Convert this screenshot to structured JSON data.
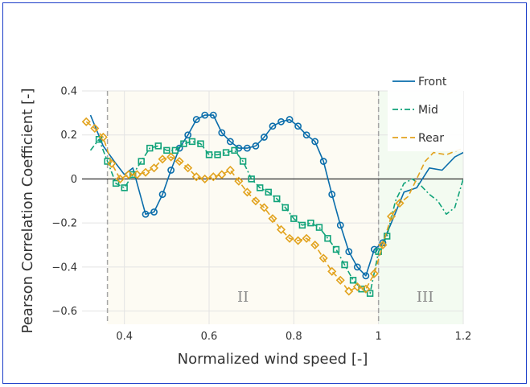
{
  "chart_data": {
    "type": "line",
    "xlabel": "Normalized wind speed [-]",
    "ylabel": "Pearson Correlation Coefficient [-]",
    "xlim": [
      0.3,
      1.2
    ],
    "ylim": [
      -0.66,
      0.4
    ],
    "x_ticks": [
      0.4,
      0.6,
      0.8,
      1.0,
      1.2
    ],
    "x_tick_labels": [
      "0.4",
      "0.6",
      "0.8",
      "1",
      "1.2"
    ],
    "y_ticks": [
      -0.6,
      -0.4,
      -0.2,
      0,
      0.2,
      0.4
    ],
    "y_tick_labels": [
      "−0.6",
      "−0.4",
      "−0.2",
      "0",
      "0.2",
      "0.4"
    ],
    "grid": true,
    "legend_position": "top-right",
    "regions": [
      {
        "label": "II",
        "x_start": 0.36,
        "x_end": 1.0,
        "color": "#fdfbf3"
      },
      {
        "label": "III",
        "x_start": 1.0,
        "x_end": 1.2,
        "color": "#f3fbf1"
      }
    ],
    "vertical_lines": [
      0.36,
      1.0
    ],
    "series": [
      {
        "name": "Front",
        "color": "#0a6dab",
        "dash": "solid",
        "marker": "circle",
        "x": [
          0.32,
          0.35,
          0.38,
          0.4,
          0.42,
          0.45,
          0.47,
          0.49,
          0.51,
          0.53,
          0.55,
          0.57,
          0.59,
          0.61,
          0.63,
          0.65,
          0.67,
          0.69,
          0.71,
          0.73,
          0.75,
          0.77,
          0.79,
          0.81,
          0.83,
          0.85,
          0.87,
          0.89,
          0.91,
          0.93,
          0.95,
          0.97,
          0.99,
          1.01,
          1.03,
          1.06,
          1.09,
          1.12,
          1.15,
          1.18,
          1.2
        ],
        "y": [
          0.29,
          0.15,
          0.07,
          0.02,
          0.05,
          -0.16,
          -0.15,
          -0.07,
          0.04,
          0.14,
          0.2,
          0.27,
          0.29,
          0.29,
          0.21,
          0.17,
          0.14,
          0.14,
          0.15,
          0.19,
          0.24,
          0.26,
          0.27,
          0.24,
          0.2,
          0.17,
          0.08,
          -0.07,
          -0.21,
          -0.33,
          -0.4,
          -0.44,
          -0.32,
          -0.29,
          -0.2,
          -0.06,
          -0.04,
          0.05,
          0.04,
          0.1,
          0.12
        ],
        "markers_x_range": [
          0.44,
          1.02
        ]
      },
      {
        "name": "Mid",
        "color": "#11a37a",
        "dash": "dashdot",
        "marker": "square",
        "x": [
          0.32,
          0.34,
          0.36,
          0.38,
          0.4,
          0.42,
          0.44,
          0.46,
          0.48,
          0.5,
          0.52,
          0.54,
          0.56,
          0.58,
          0.6,
          0.62,
          0.64,
          0.66,
          0.68,
          0.7,
          0.72,
          0.74,
          0.76,
          0.78,
          0.8,
          0.82,
          0.84,
          0.86,
          0.88,
          0.9,
          0.92,
          0.94,
          0.96,
          0.98,
          1.0,
          1.02,
          1.04,
          1.06,
          1.08,
          1.1,
          1.12,
          1.14,
          1.16,
          1.18,
          1.2
        ],
        "y": [
          0.13,
          0.18,
          0.08,
          -0.02,
          -0.04,
          0.02,
          0.08,
          0.14,
          0.15,
          0.13,
          0.13,
          0.16,
          0.17,
          0.16,
          0.11,
          0.11,
          0.12,
          0.13,
          0.08,
          0.0,
          -0.04,
          -0.06,
          -0.09,
          -0.13,
          -0.18,
          -0.21,
          -0.2,
          -0.22,
          -0.27,
          -0.32,
          -0.39,
          -0.46,
          -0.5,
          -0.52,
          -0.33,
          -0.26,
          -0.1,
          -0.02,
          0.0,
          -0.03,
          -0.07,
          -0.1,
          -0.16,
          -0.13,
          0.0
        ],
        "markers_x_range": [
          0.33,
          1.03
        ]
      },
      {
        "name": "Rear",
        "color": "#e2a31f",
        "dash": "dash",
        "marker": "diamond",
        "x": [
          0.31,
          0.33,
          0.35,
          0.37,
          0.39,
          0.41,
          0.43,
          0.45,
          0.47,
          0.49,
          0.51,
          0.53,
          0.55,
          0.57,
          0.59,
          0.61,
          0.63,
          0.65,
          0.67,
          0.69,
          0.71,
          0.73,
          0.75,
          0.77,
          0.79,
          0.81,
          0.83,
          0.85,
          0.87,
          0.89,
          0.91,
          0.93,
          0.95,
          0.97,
          0.99,
          1.01,
          1.03,
          1.05,
          1.07,
          1.09,
          1.11,
          1.13,
          1.16,
          1.2
        ],
        "y": [
          0.26,
          0.23,
          0.19,
          0.07,
          0.0,
          0.02,
          0.02,
          0.03,
          0.05,
          0.09,
          0.1,
          0.08,
          0.05,
          0.01,
          0.0,
          0.01,
          0.02,
          0.04,
          -0.01,
          -0.06,
          -0.1,
          -0.13,
          -0.18,
          -0.23,
          -0.27,
          -0.28,
          -0.27,
          -0.3,
          -0.36,
          -0.42,
          -0.46,
          -0.51,
          -0.49,
          -0.5,
          -0.43,
          -0.3,
          -0.17,
          -0.11,
          -0.08,
          0.0,
          0.08,
          0.12,
          0.11,
          0.14
        ],
        "markers_x_range": [
          0.31,
          1.05
        ]
      }
    ],
    "annotations": [
      {
        "text": "II",
        "x": 0.68,
        "y": -0.535
      },
      {
        "text": "III",
        "x": 1.11,
        "y": -0.535
      }
    ]
  }
}
